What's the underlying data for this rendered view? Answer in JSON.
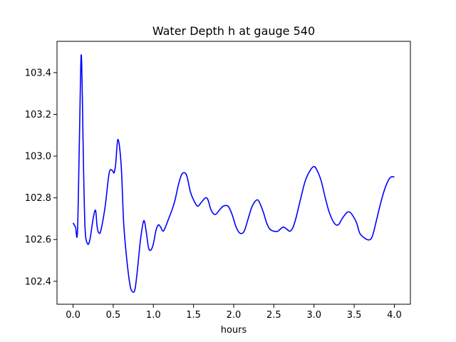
{
  "chart_data": {
    "type": "line",
    "title": "Water Depth h at gauge 540",
    "xlabel": "hours",
    "ylabel": "",
    "xlim": [
      -0.2,
      4.2
    ],
    "ylim": [
      102.29,
      103.55
    ],
    "x_ticks": [
      0.0,
      0.5,
      1.0,
      1.5,
      2.0,
      2.5,
      3.0,
      3.5,
      4.0
    ],
    "x_tick_labels": [
      "0.0",
      "0.5",
      "1.0",
      "1.5",
      "2.0",
      "2.5",
      "3.0",
      "3.5",
      "4.0"
    ],
    "y_ticks": [
      102.4,
      102.6,
      102.8,
      103.0,
      103.2,
      103.4
    ],
    "y_tick_labels": [
      "102.4",
      "102.6",
      "102.8",
      "103.0",
      "103.2",
      "103.4"
    ],
    "grid": false,
    "legend": "none",
    "series": [
      {
        "color": "#0000ff",
        "x": [
          0.0,
          0.03,
          0.055,
          0.08,
          0.1,
          0.115,
          0.13,
          0.15,
          0.18,
          0.21,
          0.25,
          0.28,
          0.3,
          0.325,
          0.35,
          0.4,
          0.45,
          0.49,
          0.51,
          0.53,
          0.56,
          0.6,
          0.63,
          0.67,
          0.71,
          0.74,
          0.77,
          0.8,
          0.84,
          0.88,
          0.91,
          0.94,
          0.97,
          1.0,
          1.03,
          1.06,
          1.09,
          1.12,
          1.15,
          1.19,
          1.23,
          1.27,
          1.31,
          1.35,
          1.39,
          1.42,
          1.46,
          1.5,
          1.55,
          1.6,
          1.65,
          1.68,
          1.72,
          1.77,
          1.82,
          1.87,
          1.93,
          1.98,
          2.03,
          2.08,
          2.13,
          2.18,
          2.22,
          2.26,
          2.3,
          2.33,
          2.37,
          2.41,
          2.45,
          2.5,
          2.55,
          2.58,
          2.62,
          2.66,
          2.7,
          2.74,
          2.78,
          2.83,
          2.89,
          2.95,
          3.0,
          3.04,
          3.09,
          3.14,
          3.19,
          3.25,
          3.3,
          3.35,
          3.41,
          3.45,
          3.49,
          3.53,
          3.57,
          3.62,
          3.66,
          3.7,
          3.73,
          3.77,
          3.82,
          3.87,
          3.92,
          3.96,
          4.0
        ],
        "y": [
          102.68,
          102.66,
          102.64,
          103.1,
          103.48,
          103.3,
          102.95,
          102.65,
          102.58,
          102.6,
          102.7,
          102.74,
          102.66,
          102.63,
          102.65,
          102.76,
          102.92,
          102.93,
          102.92,
          102.96,
          103.08,
          102.95,
          102.68,
          102.5,
          102.38,
          102.35,
          102.36,
          102.45,
          102.6,
          102.69,
          102.64,
          102.56,
          102.55,
          102.58,
          102.64,
          102.67,
          102.66,
          102.64,
          102.66,
          102.7,
          102.74,
          102.79,
          102.86,
          102.91,
          102.92,
          102.9,
          102.83,
          102.79,
          102.76,
          102.78,
          102.8,
          102.79,
          102.74,
          102.72,
          102.74,
          102.76,
          102.76,
          102.72,
          102.66,
          102.63,
          102.64,
          102.7,
          102.75,
          102.78,
          102.79,
          102.77,
          102.73,
          102.68,
          102.65,
          102.64,
          102.64,
          102.65,
          102.66,
          102.65,
          102.64,
          102.66,
          102.71,
          102.79,
          102.88,
          102.93,
          102.95,
          102.93,
          102.88,
          102.8,
          102.73,
          102.68,
          102.67,
          102.7,
          102.73,
          102.73,
          102.71,
          102.68,
          102.63,
          102.61,
          102.6,
          102.6,
          102.62,
          102.68,
          102.76,
          102.83,
          102.88,
          102.9,
          102.9
        ]
      }
    ]
  }
}
